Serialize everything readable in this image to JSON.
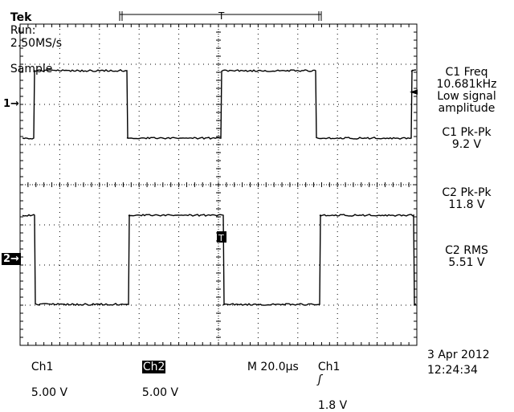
{
  "header": {
    "brand": "Tek",
    "run_status": "Run:",
    "sample_rate": "2.50MS/s",
    "acq_mode": "Sample"
  },
  "markers": {
    "ch1": "1→",
    "ch2": "2→",
    "trigger_level": "◄",
    "trigger_pos": "T",
    "trigger_pos_bottom": "T"
  },
  "measurements": [
    {
      "label": "C1 Freq",
      "value": "10.681kHz",
      "note1": "Low signal",
      "note2": "amplitude"
    },
    {
      "label": "C1 Pk-Pk",
      "value": "9.2 V"
    },
    {
      "label": "C2 Pk-Pk",
      "value": "11.8 V"
    },
    {
      "label": "C2 RMS",
      "value": "5.51 V"
    }
  ],
  "footer": {
    "ch1_label": "Ch1",
    "ch1_scale": "5.00 V",
    "ch2_label": "Ch2",
    "ch2_scale": "5.00 V",
    "timebase": "M 20.0µs",
    "trig_source": "Ch1",
    "trig_slope": "ʃ",
    "trig_level": "1.8 V",
    "date": "3 Apr 2012",
    "time": "12:24:34"
  },
  "colors": {
    "background": "#ffffff",
    "trace": "#000000",
    "grid": "#000000"
  }
}
